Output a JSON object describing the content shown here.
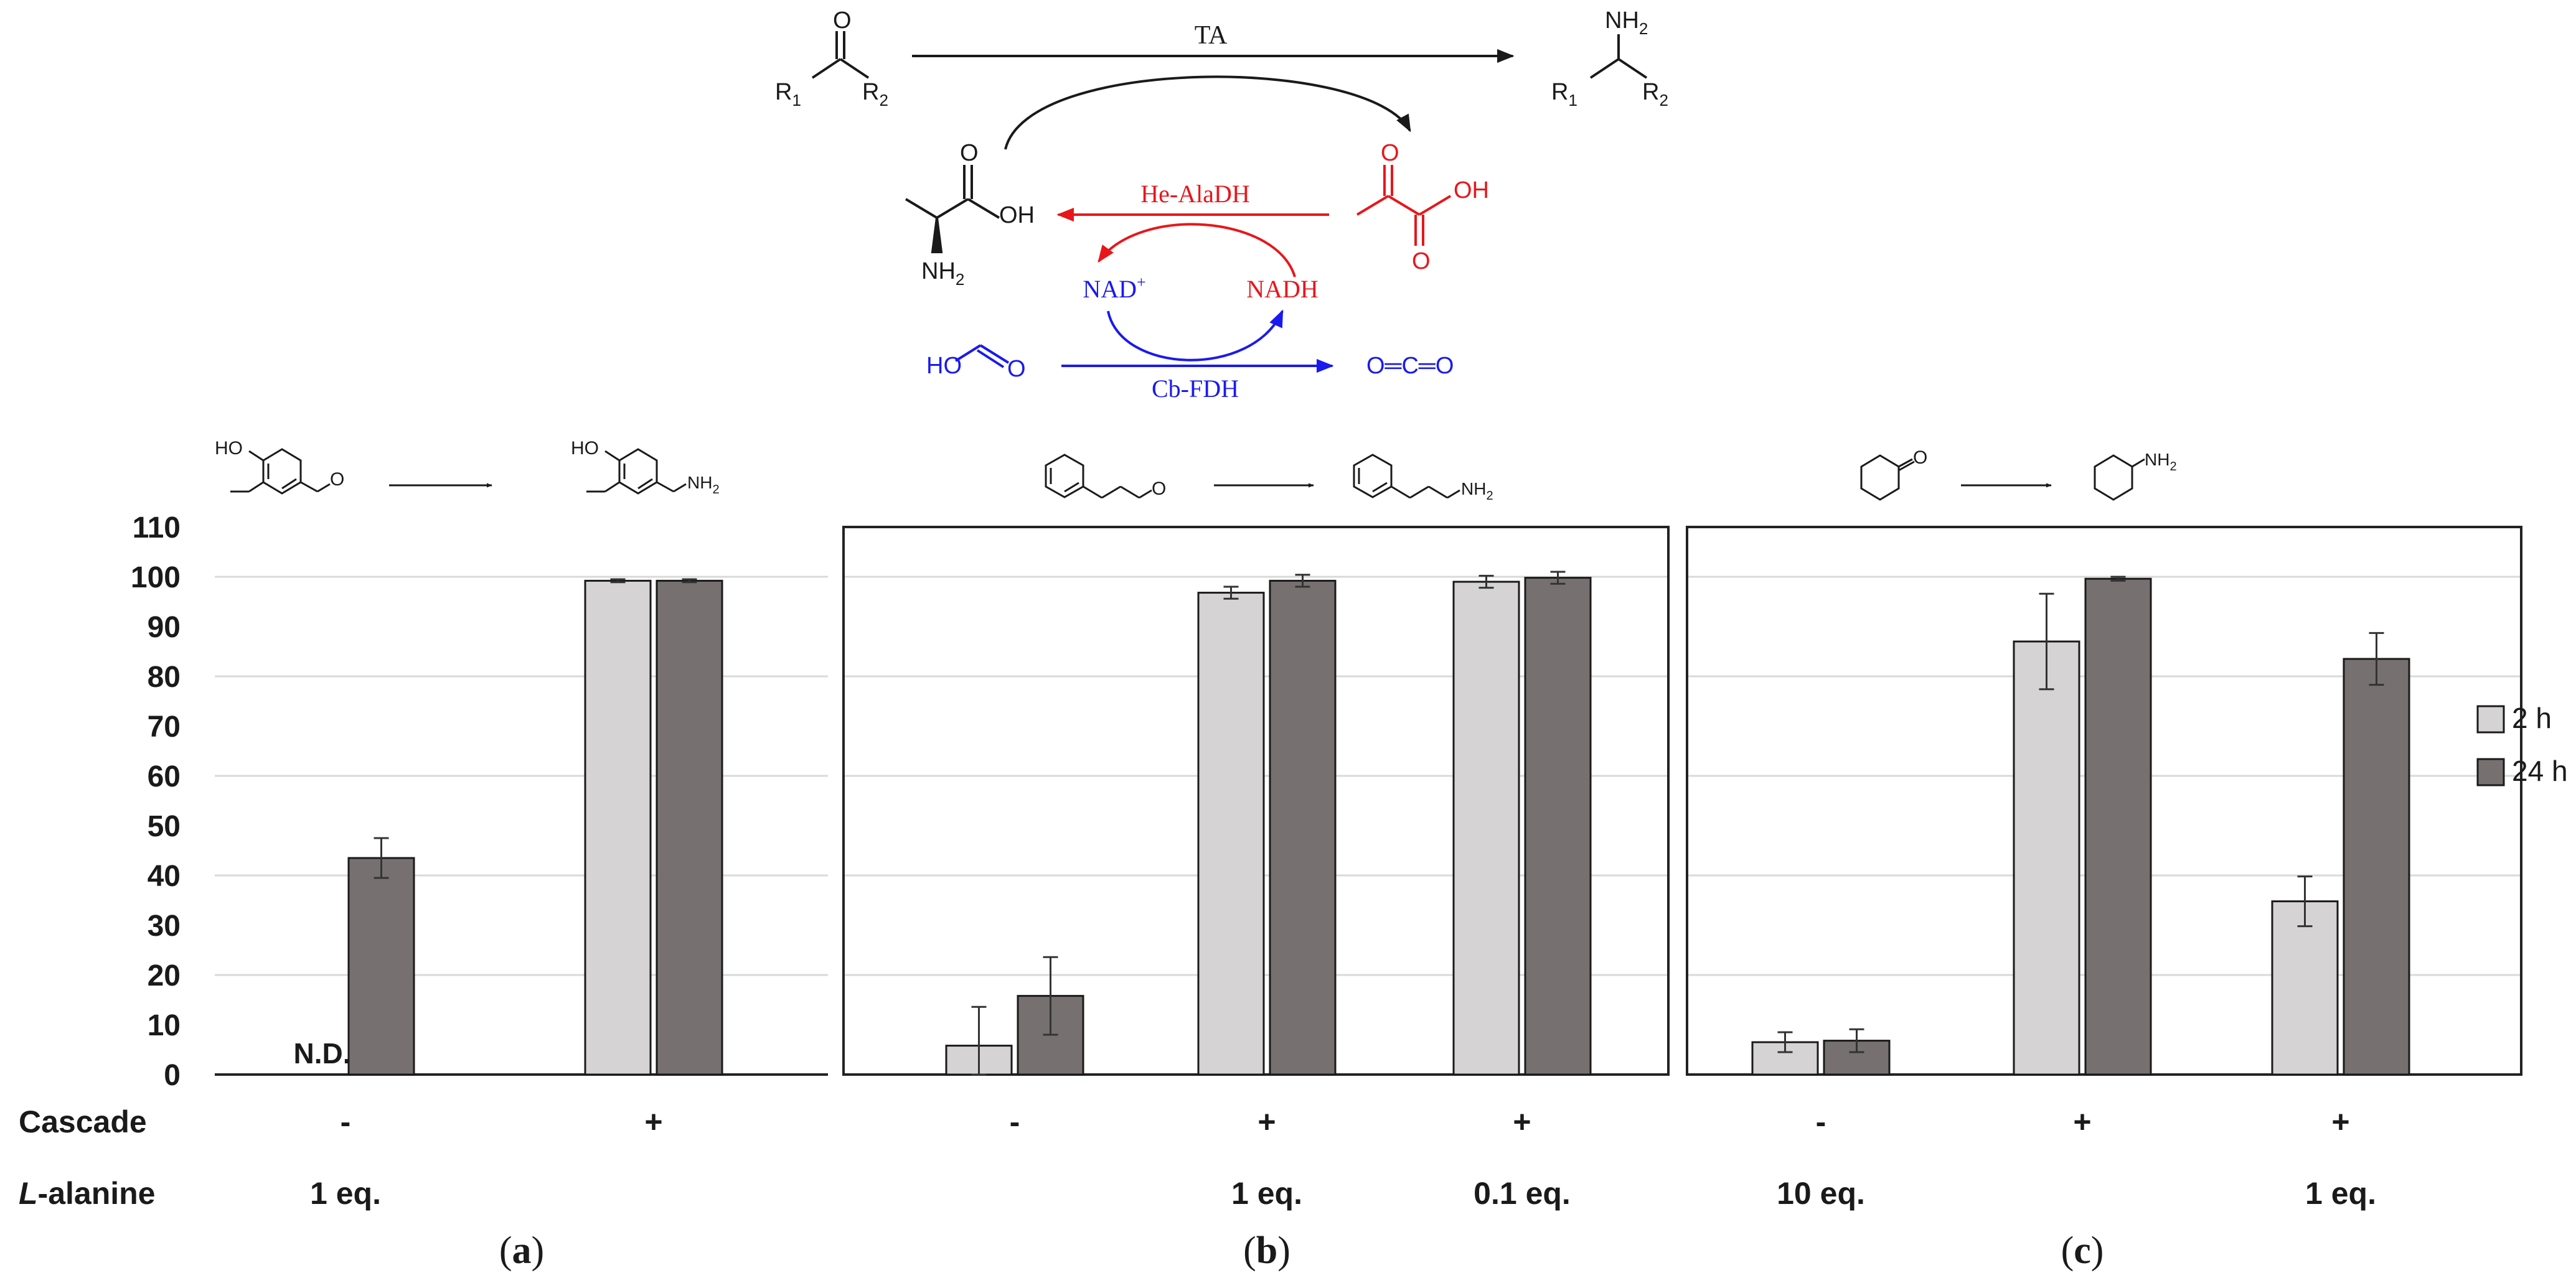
{
  "scheme": {
    "arrow_label_top": "TA",
    "arrow_label_red": "He-AlaDH",
    "arrow_label_blue": "Cb-FDH",
    "cofactor_oxidized": "NAD",
    "cofactor_oxidized_sup": "+",
    "cofactor_reduced": "NADH",
    "ketone_r1": "R",
    "ketone_r2": "R",
    "sub1": "1",
    "sub2": "2",
    "amine_nh2": "NH",
    "nh2_sub": "2",
    "alanine_oh": "OH",
    "alanine_nh2": "NH",
    "pyruvate_oh": "OH",
    "pyruvate_o": "O",
    "formate": "HO",
    "co2": "O═C═O"
  },
  "reactions": {
    "a_nh2": "NH",
    "b_nh2": "NH",
    "c_nh2": "NH",
    "sub2": "2"
  },
  "row_labels": {
    "cascade": "Cascade",
    "alanine_prefix": "L",
    "alanine_rest": "-alanine"
  },
  "panels": [
    {
      "id": "a",
      "caption_open": "(",
      "caption_letter": "a",
      "caption_close": ")",
      "groups": [
        {
          "cascade": "-",
          "alanine": "1 eq.",
          "values": [
            null,
            43.5
          ],
          "errors": [
            null,
            4.0
          ],
          "annotation": "N.D."
        },
        {
          "cascade": "+",
          "alanine": "",
          "values": [
            99.2,
            99.2
          ],
          "errors": [
            0.3,
            0.3
          ],
          "annotation": ""
        }
      ]
    },
    {
      "id": "b",
      "caption_open": "(",
      "caption_letter": "b",
      "caption_close": ")",
      "groups": [
        {
          "cascade": "-",
          "alanine": "",
          "values": [
            5.8,
            15.8
          ],
          "errors": [
            7.8,
            7.8
          ],
          "annotation": ""
        },
        {
          "cascade": "+",
          "alanine": "1 eq.",
          "values": [
            96.8,
            99.2
          ],
          "errors": [
            1.2,
            1.2
          ],
          "annotation": ""
        },
        {
          "cascade": "+",
          "alanine": "0.1 eq.",
          "values": [
            99.0,
            99.8
          ],
          "errors": [
            1.2,
            1.2
          ],
          "annotation": ""
        }
      ]
    },
    {
      "id": "c",
      "caption_open": "(",
      "caption_letter": "c",
      "caption_close": ")",
      "groups": [
        {
          "cascade": "-",
          "alanine": "10 eq.",
          "values": [
            6.5,
            6.8
          ],
          "errors": [
            2.0,
            2.3
          ],
          "annotation": ""
        },
        {
          "cascade": "+",
          "alanine": "",
          "values": [
            87.0,
            99.6
          ],
          "errors": [
            9.6,
            0.4
          ],
          "annotation": ""
        },
        {
          "cascade": "+",
          "alanine": "1 eq.",
          "values": [
            34.8,
            83.5
          ],
          "errors": [
            5.0,
            5.2
          ],
          "annotation": ""
        }
      ]
    }
  ],
  "chart_data": {
    "type": "bar",
    "title": "",
    "xlabel": "",
    "ylabel": "",
    "ylim": [
      0,
      110
    ],
    "yticks": [
      "0",
      "10",
      "20",
      "30",
      "40",
      "50",
      "60",
      "70",
      "80",
      "90",
      "100",
      "110"
    ],
    "series": [
      {
        "name": "2 h",
        "color": "#d5d3d3"
      },
      {
        "name": "24 h",
        "color": "#767170"
      }
    ],
    "legend_position": "right",
    "grid": true
  },
  "colors": {
    "black": "#1a1a1a",
    "red": "#e8161b",
    "blue": "#1a1aee",
    "light_bar": "#d5d3d3",
    "dark_bar": "#767170",
    "grid": "#d9d9d9",
    "frame": "#222222"
  }
}
